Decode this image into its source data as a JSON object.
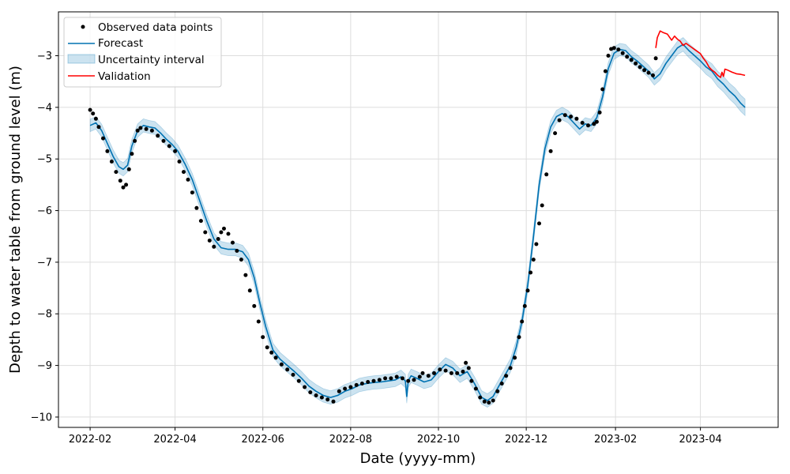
{
  "chart_data": {
    "type": "line",
    "xlabel": "Date (yyyy-mm)",
    "ylabel": "Depth to water table from ground level (m)",
    "xlim": [
      "2022-01-10",
      "2023-05-25"
    ],
    "ylim": [
      -10.2,
      -2.15
    ],
    "grid": true,
    "legend_position": "top-left",
    "x_ticks": [
      "2022-02-01",
      "2022-04-01",
      "2022-06-01",
      "2022-08-01",
      "2022-10-01",
      "2022-12-01",
      "2023-02-01",
      "2023-04-01"
    ],
    "x_tick_labels": [
      "2022-02",
      "2022-04",
      "2022-06",
      "2022-08",
      "2022-10",
      "2022-12",
      "2023-02",
      "2023-04"
    ],
    "y_ticks": [
      -10,
      -9,
      -8,
      -7,
      -6,
      -5,
      -4,
      -3
    ],
    "y_tick_labels": [
      "−10",
      "−9",
      "−8",
      "−7",
      "−6",
      "−5",
      "−4",
      "−3"
    ],
    "colors": {
      "observed": "#000000",
      "forecast": "#0072b2",
      "uncertainty": "#0072b2",
      "validation": "#ff0000",
      "grid": "#dddddd"
    },
    "legend": [
      {
        "label": "Observed data points",
        "kind": "marker",
        "color": "#000000"
      },
      {
        "label": "Forecast",
        "kind": "line",
        "color": "#0072b2"
      },
      {
        "label": "Uncertainty interval",
        "kind": "patch",
        "color": "#0072b2"
      },
      {
        "label": "Validation",
        "kind": "line",
        "color": "#ff0000"
      }
    ],
    "series": [
      {
        "name": "Observed data points",
        "type": "scatter",
        "x": [
          "2022-02-01",
          "2022-02-03",
          "2022-02-05",
          "2022-02-07",
          "2022-02-10",
          "2022-02-13",
          "2022-02-16",
          "2022-02-19",
          "2022-02-22",
          "2022-02-24",
          "2022-02-26",
          "2022-02-28",
          "2022-03-02",
          "2022-03-04",
          "2022-03-06",
          "2022-03-08",
          "2022-03-12",
          "2022-03-16",
          "2022-03-20",
          "2022-03-24",
          "2022-03-28",
          "2022-04-01",
          "2022-04-04",
          "2022-04-07",
          "2022-04-10",
          "2022-04-13",
          "2022-04-16",
          "2022-04-19",
          "2022-04-22",
          "2022-04-25",
          "2022-04-28",
          "2022-05-01",
          "2022-05-03",
          "2022-05-05",
          "2022-05-08",
          "2022-05-11",
          "2022-05-14",
          "2022-05-17",
          "2022-05-20",
          "2022-05-23",
          "2022-05-26",
          "2022-05-29",
          "2022-06-01",
          "2022-06-04",
          "2022-06-07",
          "2022-06-10",
          "2022-06-14",
          "2022-06-18",
          "2022-06-22",
          "2022-06-26",
          "2022-06-30",
          "2022-07-04",
          "2022-07-08",
          "2022-07-12",
          "2022-07-16",
          "2022-07-20",
          "2022-07-24",
          "2022-07-28",
          "2022-08-01",
          "2022-08-05",
          "2022-08-09",
          "2022-08-13",
          "2022-08-17",
          "2022-08-21",
          "2022-08-25",
          "2022-08-29",
          "2022-09-02",
          "2022-09-06",
          "2022-09-10",
          "2022-09-14",
          "2022-09-18",
          "2022-09-20",
          "2022-09-24",
          "2022-09-28",
          "2022-10-02",
          "2022-10-06",
          "2022-10-10",
          "2022-10-14",
          "2022-10-18",
          "2022-10-20",
          "2022-10-22",
          "2022-10-24",
          "2022-10-27",
          "2022-10-30",
          "2022-11-02",
          "2022-11-05",
          "2022-11-08",
          "2022-11-11",
          "2022-11-14",
          "2022-11-17",
          "2022-11-20",
          "2022-11-23",
          "2022-11-26",
          "2022-11-28",
          "2022-11-30",
          "2022-12-02",
          "2022-12-04",
          "2022-12-06",
          "2022-12-08",
          "2022-12-10",
          "2022-12-12",
          "2022-12-15",
          "2022-12-18",
          "2022-12-21",
          "2022-12-24",
          "2022-12-28",
          "2023-01-01",
          "2023-01-05",
          "2023-01-09",
          "2023-01-13",
          "2023-01-17",
          "2023-01-19",
          "2023-01-21",
          "2023-01-23",
          "2023-01-25",
          "2023-01-27",
          "2023-01-29",
          "2023-01-31",
          "2023-02-03",
          "2023-02-06",
          "2023-02-09",
          "2023-02-12",
          "2023-02-15",
          "2023-02-18",
          "2023-02-21",
          "2023-02-24",
          "2023-02-27",
          "2023-03-01"
        ],
        "y": [
          -4.05,
          -4.12,
          -4.22,
          -4.38,
          -4.6,
          -4.85,
          -5.05,
          -5.25,
          -5.42,
          -5.55,
          -5.5,
          -5.2,
          -4.9,
          -4.65,
          -4.45,
          -4.4,
          -4.42,
          -4.45,
          -4.55,
          -4.65,
          -4.75,
          -4.85,
          -5.05,
          -5.25,
          -5.4,
          -5.65,
          -5.95,
          -6.2,
          -6.42,
          -6.58,
          -6.7,
          -6.55,
          -6.42,
          -6.35,
          -6.45,
          -6.62,
          -6.78,
          -6.95,
          -7.25,
          -7.55,
          -7.85,
          -8.15,
          -8.45,
          -8.65,
          -8.75,
          -8.85,
          -8.98,
          -9.08,
          -9.18,
          -9.3,
          -9.42,
          -9.52,
          -9.58,
          -9.62,
          -9.66,
          -9.7,
          -9.5,
          -9.45,
          -9.42,
          -9.38,
          -9.35,
          -9.32,
          -9.3,
          -9.28,
          -9.25,
          -9.25,
          -9.22,
          -9.25,
          -9.3,
          -9.28,
          -9.22,
          -9.15,
          -9.2,
          -9.15,
          -9.08,
          -9.1,
          -9.15,
          -9.15,
          -9.12,
          -8.95,
          -9.05,
          -9.3,
          -9.45,
          -9.62,
          -9.7,
          -9.72,
          -9.68,
          -9.5,
          -9.35,
          -9.2,
          -9.05,
          -8.85,
          -8.45,
          -8.15,
          -7.85,
          -7.55,
          -7.2,
          -6.95,
          -6.65,
          -6.25,
          -5.9,
          -5.3,
          -4.85,
          -4.5,
          -4.25,
          -4.15,
          -4.18,
          -4.22,
          -4.3,
          -4.35,
          -4.32,
          -4.28,
          -4.1,
          -3.65,
          -3.3,
          -3.0,
          -2.87,
          -2.85,
          -2.88,
          -2.95,
          -3.02,
          -3.08,
          -3.15,
          -3.22,
          -3.28,
          -3.33,
          -3.38,
          -3.05
        ],
        "color": "#000000"
      },
      {
        "name": "Forecast",
        "type": "line",
        "x": [
          "2022-02-01",
          "2022-02-05",
          "2022-02-09",
          "2022-02-13",
          "2022-02-17",
          "2022-02-21",
          "2022-02-24",
          "2022-02-27",
          "2022-03-02",
          "2022-03-06",
          "2022-03-10",
          "2022-03-14",
          "2022-03-18",
          "2022-03-22",
          "2022-03-26",
          "2022-03-30",
          "2022-04-03",
          "2022-04-08",
          "2022-04-13",
          "2022-04-18",
          "2022-04-23",
          "2022-04-28",
          "2022-05-03",
          "2022-05-08",
          "2022-05-13",
          "2022-05-18",
          "2022-05-22",
          "2022-05-26",
          "2022-05-30",
          "2022-06-03",
          "2022-06-08",
          "2022-06-13",
          "2022-06-18",
          "2022-06-23",
          "2022-06-28",
          "2022-07-03",
          "2022-07-08",
          "2022-07-13",
          "2022-07-18",
          "2022-07-23",
          "2022-07-28",
          "2022-08-02",
          "2022-08-07",
          "2022-08-12",
          "2022-08-17",
          "2022-08-22",
          "2022-08-27",
          "2022-09-01",
          "2022-09-05",
          "2022-09-08",
          "2022-09-09",
          "2022-09-10",
          "2022-09-12",
          "2022-09-16",
          "2022-09-21",
          "2022-09-26",
          "2022-10-01",
          "2022-10-06",
          "2022-10-11",
          "2022-10-16",
          "2022-10-21",
          "2022-10-26",
          "2022-10-31",
          "2022-11-04",
          "2022-11-08",
          "2022-11-12",
          "2022-11-16",
          "2022-11-20",
          "2022-11-24",
          "2022-11-28",
          "2022-12-02",
          "2022-12-06",
          "2022-12-10",
          "2022-12-14",
          "2022-12-18",
          "2022-12-22",
          "2022-12-26",
          "2022-12-30",
          "2023-01-03",
          "2023-01-07",
          "2023-01-11",
          "2023-01-15",
          "2023-01-19",
          "2023-01-23",
          "2023-01-27",
          "2023-01-31",
          "2023-02-04",
          "2023-02-08",
          "2023-02-12",
          "2023-02-16",
          "2023-02-20",
          "2023-02-24",
          "2023-02-28",
          "2023-03-04",
          "2023-03-08",
          "2023-03-12",
          "2023-03-16",
          "2023-03-20",
          "2023-03-24",
          "2023-03-28",
          "2023-04-01",
          "2023-04-05",
          "2023-04-09",
          "2023-04-13",
          "2023-04-17",
          "2023-04-21",
          "2023-04-25",
          "2023-04-29",
          "2023-05-02"
        ],
        "y": [
          -4.35,
          -4.3,
          -4.45,
          -4.7,
          -4.95,
          -5.15,
          -5.2,
          -5.12,
          -4.75,
          -4.45,
          -4.35,
          -4.38,
          -4.4,
          -4.5,
          -4.62,
          -4.72,
          -4.85,
          -5.1,
          -5.4,
          -5.8,
          -6.2,
          -6.55,
          -6.72,
          -6.75,
          -6.75,
          -6.8,
          -6.95,
          -7.3,
          -7.8,
          -8.25,
          -8.7,
          -8.88,
          -9.0,
          -9.12,
          -9.25,
          -9.4,
          -9.5,
          -9.58,
          -9.62,
          -9.58,
          -9.5,
          -9.45,
          -9.38,
          -9.35,
          -9.33,
          -9.32,
          -9.3,
          -9.28,
          -9.22,
          -9.3,
          -9.6,
          -9.3,
          -9.2,
          -9.25,
          -9.32,
          -9.28,
          -9.12,
          -8.98,
          -9.05,
          -9.2,
          -9.12,
          -9.35,
          -9.62,
          -9.68,
          -9.6,
          -9.4,
          -9.2,
          -9.0,
          -8.65,
          -8.15,
          -7.45,
          -6.5,
          -5.5,
          -4.8,
          -4.38,
          -4.18,
          -4.12,
          -4.18,
          -4.3,
          -4.42,
          -4.32,
          -4.35,
          -4.2,
          -3.8,
          -3.25,
          -2.95,
          -2.88,
          -2.9,
          -3.02,
          -3.1,
          -3.2,
          -3.3,
          -3.45,
          -3.35,
          -3.15,
          -3.0,
          -2.85,
          -2.78,
          -2.9,
          -3.0,
          -3.1,
          -3.22,
          -3.3,
          -3.45,
          -3.55,
          -3.68,
          -3.78,
          -3.92,
          -4.0
        ],
        "color": "#0072b2"
      },
      {
        "name": "Validation",
        "type": "line",
        "x": [
          "2023-03-01",
          "2023-03-02",
          "2023-03-04",
          "2023-03-06",
          "2023-03-09",
          "2023-03-12",
          "2023-03-14",
          "2023-03-16",
          "2023-03-18",
          "2023-03-20",
          "2023-03-22",
          "2023-03-24",
          "2023-03-26",
          "2023-03-28",
          "2023-03-30",
          "2023-04-01",
          "2023-04-03",
          "2023-04-05",
          "2023-04-07",
          "2023-04-09",
          "2023-04-11",
          "2023-04-13",
          "2023-04-15",
          "2023-04-16",
          "2023-04-17",
          "2023-04-18",
          "2023-04-20",
          "2023-04-23",
          "2023-04-26",
          "2023-04-29",
          "2023-05-02"
        ],
        "y": [
          -2.85,
          -2.65,
          -2.52,
          -2.55,
          -2.58,
          -2.7,
          -2.62,
          -2.68,
          -2.72,
          -2.8,
          -2.76,
          -2.8,
          -2.84,
          -2.88,
          -2.92,
          -2.96,
          -3.05,
          -3.12,
          -3.22,
          -3.28,
          -3.32,
          -3.38,
          -3.42,
          -3.32,
          -3.4,
          -3.26,
          -3.28,
          -3.32,
          -3.35,
          -3.36,
          -3.38
        ],
        "color": "#ff0000"
      },
      {
        "name": "Uncertainty interval",
        "type": "band",
        "x": [
          "2022-02-01",
          "2022-03-01",
          "2022-04-01",
          "2022-05-01",
          "2022-06-01",
          "2022-07-01",
          "2022-08-01",
          "2022-09-01",
          "2022-10-01",
          "2022-11-01",
          "2022-12-01",
          "2023-01-01",
          "2023-02-01",
          "2023-03-01",
          "2023-04-01",
          "2023-05-02"
        ],
        "half_width": [
          0.12,
          0.13,
          0.12,
          0.12,
          0.13,
          0.13,
          0.13,
          0.13,
          0.13,
          0.13,
          0.13,
          0.12,
          0.12,
          0.12,
          0.14,
          0.16
        ],
        "color": "#0072b2"
      }
    ]
  }
}
